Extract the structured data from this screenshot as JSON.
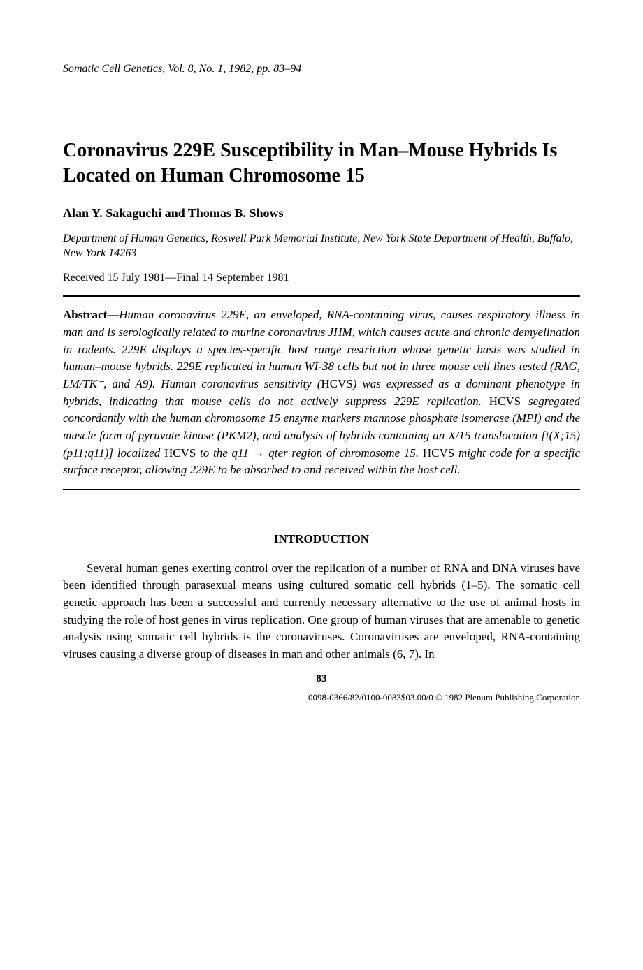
{
  "journal_header": "Somatic Cell Genetics, Vol. 8, No. 1, 1982, pp. 83–94",
  "title": "Coronavirus 229E Susceptibility in Man–Mouse Hybrids Is Located on Human Chromosome 15",
  "authors": "Alan Y. Sakaguchi and Thomas B. Shows",
  "affiliation": "Department of Human Genetics, Roswell Park Memorial Institute, New York State Department of Health, Buffalo, New York 14263",
  "received": "Received 15 July 1981—Final 14 September 1981",
  "abstract": {
    "label": "Abstract—",
    "part1": "Human coronavirus 229E, an enveloped, RNA-containing virus, causes respiratory illness in man and is serologically related to murine coronavirus JHM, which causes acute and chronic demyelination in rodents. 229E displays a species-specific host range restriction whose genetic basis was studied in human–mouse hybrids. 229E replicated in human WI-38 cells but not in three mouse cell lines tested (RAG, LM/TK⁻, and A9). Human coronavirus sensitivity (",
    "roman1": "HCVS",
    "part2": ") was expressed as a dominant phenotype in hybrids, indicating that mouse cells do not actively suppress 229E replication. ",
    "roman2": "HCVS",
    "part3": " segregated concordantly with the human chromosome 15 enzyme markers mannose phosphate isomerase (MPI) and the muscle form of pyruvate kinase (PKM2), and analysis of hybrids containing an X/15 translocation [t(X;15)(p11;q11)] localized ",
    "roman3": "HCVS",
    "part4": " to the q11 → qter region of chromosome 15. ",
    "roman4": "HCVS",
    "part5": " might code for a specific surface receptor, allowing 229E to be absorbed to and received within the host cell."
  },
  "section_heading": "INTRODUCTION",
  "body_paragraph": "Several human genes exerting control over the replication of a number of RNA and DNA viruses have been identified through parasexual means using cultured somatic cell hybrids (1–5). The somatic cell genetic approach has been a successful and currently necessary alternative to the use of animal hosts in studying the role of host genes in virus replication. One group of human viruses that are amenable to genetic analysis using somatic cell hybrids is the coronaviruses. Coronaviruses are enveloped, RNA-containing viruses causing a diverse group of diseases in man and other animals (6, 7). In",
  "page_number": "83",
  "footer": "0098-0366/82/0100-0083$03.00/0 © 1982 Plenum Publishing Corporation"
}
